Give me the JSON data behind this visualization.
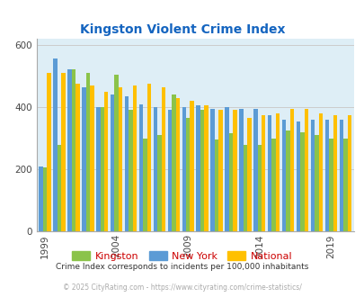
{
  "title": "Kingston Violent Crime Index",
  "subtitle": "Crime Index corresponds to incidents per 100,000 inhabitants",
  "copyright": "© 2025 CityRating.com - https://www.cityrating.com/crime-statistics/",
  "years": [
    1999,
    2000,
    2001,
    2002,
    2003,
    2004,
    2005,
    2006,
    2007,
    2008,
    2009,
    2010,
    2011,
    2012,
    2013,
    2014,
    2015,
    2016,
    2017,
    2018,
    2019,
    2020
  ],
  "kingston": [
    207,
    280,
    520,
    510,
    400,
    505,
    390,
    300,
    310,
    440,
    365,
    390,
    295,
    315,
    280,
    280,
    300,
    325,
    320,
    310,
    300,
    300
  ],
  "new_york": [
    210,
    555,
    520,
    465,
    400,
    440,
    435,
    410,
    400,
    390,
    400,
    405,
    395,
    400,
    395,
    395,
    375,
    360,
    355,
    360,
    360,
    360
  ],
  "national": [
    510,
    510,
    475,
    470,
    450,
    465,
    470,
    475,
    465,
    430,
    420,
    405,
    390,
    390,
    365,
    375,
    380,
    395,
    395,
    380,
    375,
    375
  ],
  "ylim": [
    0,
    620
  ],
  "yticks": [
    0,
    200,
    400,
    600
  ],
  "color_new_york": "#5b9bd5",
  "color_kingston": "#8bc34a",
  "color_national": "#ffc000",
  "bg_color": "#deeef6",
  "title_color": "#1565c0",
  "subtitle_color": "#333333",
  "copyright_color": "#aaaaaa",
  "legend_label_color": "#cc0000",
  "bar_width": 0.28,
  "grid_color": "#cccccc",
  "tick_years": [
    1999,
    2004,
    2009,
    2014,
    2019
  ]
}
